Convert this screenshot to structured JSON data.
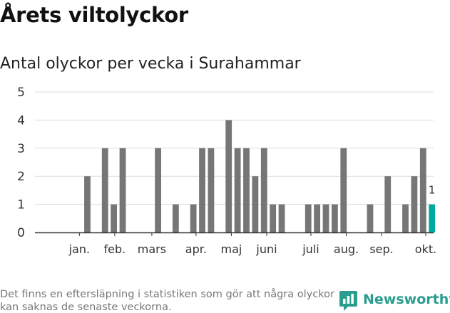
{
  "title": "Årets viltolyckor",
  "subtitle": "Antal olyckor per vecka i Surahammar",
  "footnote": "Det finns en eftersläpning i statistiken som gör att några olyckor kan saknas de senaste veckorna.",
  "brand": {
    "name": "Newsworthy"
  },
  "colors": {
    "bar": "#767676",
    "highlight": "#00a99d",
    "grid": "#dddddd",
    "axis": "#333333",
    "brand": "#2a9d8f"
  },
  "chart_data": {
    "type": "bar",
    "title": "Antal olyckor per vecka i Surahammar",
    "xlabel": "",
    "ylabel": "",
    "ylim": [
      0,
      5
    ],
    "yticks": [
      0,
      1,
      2,
      3,
      4,
      5
    ],
    "x": [
      1,
      2,
      3,
      4,
      5,
      6,
      7,
      8,
      9,
      10,
      11,
      12,
      13,
      14,
      15,
      16,
      17,
      18,
      19,
      20,
      21,
      22,
      23,
      24,
      25,
      26,
      27,
      28,
      29,
      30,
      31,
      32,
      33,
      34,
      35,
      36,
      37,
      38,
      39,
      40,
      41,
      42
    ],
    "values": [
      0,
      0,
      0,
      2,
      0,
      3,
      1,
      3,
      0,
      0,
      0,
      3,
      0,
      1,
      0,
      1,
      3,
      3,
      0,
      4,
      3,
      3,
      2,
      3,
      1,
      1,
      0,
      0,
      1,
      1,
      1,
      1,
      3,
      0,
      0,
      1,
      0,
      2,
      0,
      1,
      2,
      3
    ],
    "highlight": {
      "x": 43,
      "value": 1,
      "label": "1"
    },
    "month_labels": [
      {
        "label": "jan.",
        "week": 3.1
      },
      {
        "label": "feb.",
        "week": 7.1
      },
      {
        "label": "mars",
        "week": 11.3
      },
      {
        "label": "apr.",
        "week": 16.3
      },
      {
        "label": "maj",
        "week": 20.3
      },
      {
        "label": "juni",
        "week": 24.3
      },
      {
        "label": "juli",
        "week": 29.3
      },
      {
        "label": "aug.",
        "week": 33.3
      },
      {
        "label": "sep.",
        "week": 37.3
      },
      {
        "label": "okt.",
        "week": 42.3
      }
    ]
  }
}
